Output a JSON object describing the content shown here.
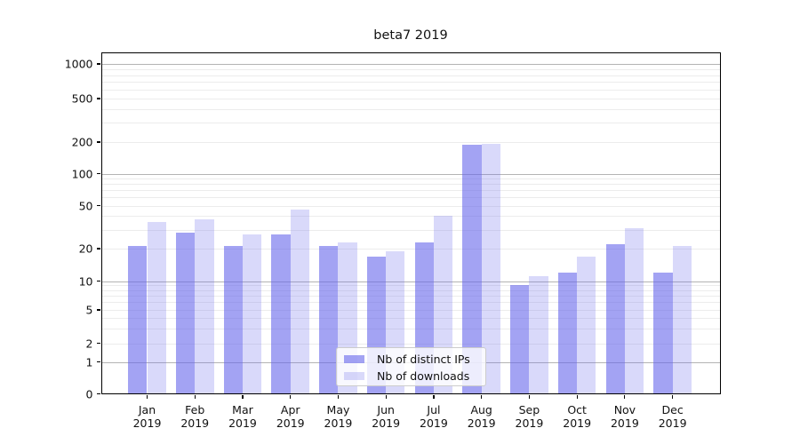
{
  "chart_data": {
    "type": "bar",
    "title": "beta7 2019",
    "categories": [
      "Jan 2019",
      "Feb 2019",
      "Mar 2019",
      "Apr 2019",
      "May 2019",
      "Jun 2019",
      "Jul 2019",
      "Aug 2019",
      "Sep 2019",
      "Oct 2019",
      "Nov 2019",
      "Dec 2019"
    ],
    "series": [
      {
        "name": "Nb of distinct IPs",
        "values": [
          21,
          28,
          21,
          27,
          21,
          17,
          23,
          188,
          9,
          12,
          22,
          12
        ],
        "color": "rgba(102,102,235,0.6)"
      },
      {
        "name": "Nb of downloads",
        "values": [
          35,
          37,
          27,
          46,
          23,
          19,
          40,
          193,
          11,
          17,
          31,
          21
        ],
        "color": "rgba(102,102,235,0.25)"
      }
    ],
    "xlabel": "",
    "ylabel": "",
    "y_ticks": [
      0,
      1,
      2,
      5,
      10,
      20,
      50,
      100,
      200,
      500,
      1000
    ],
    "y_scale": "log-like (compressed below 10, zero baseline)",
    "ylim": [
      0,
      1300
    ],
    "grid": true,
    "legend_position": "lower center, inside plot",
    "colors": {
      "bar_base": "#6666eb",
      "major_gridline": "#b4b4b4",
      "minor_gridline": "#ececec",
      "spine": "#000000",
      "background": "#ffffff"
    }
  }
}
